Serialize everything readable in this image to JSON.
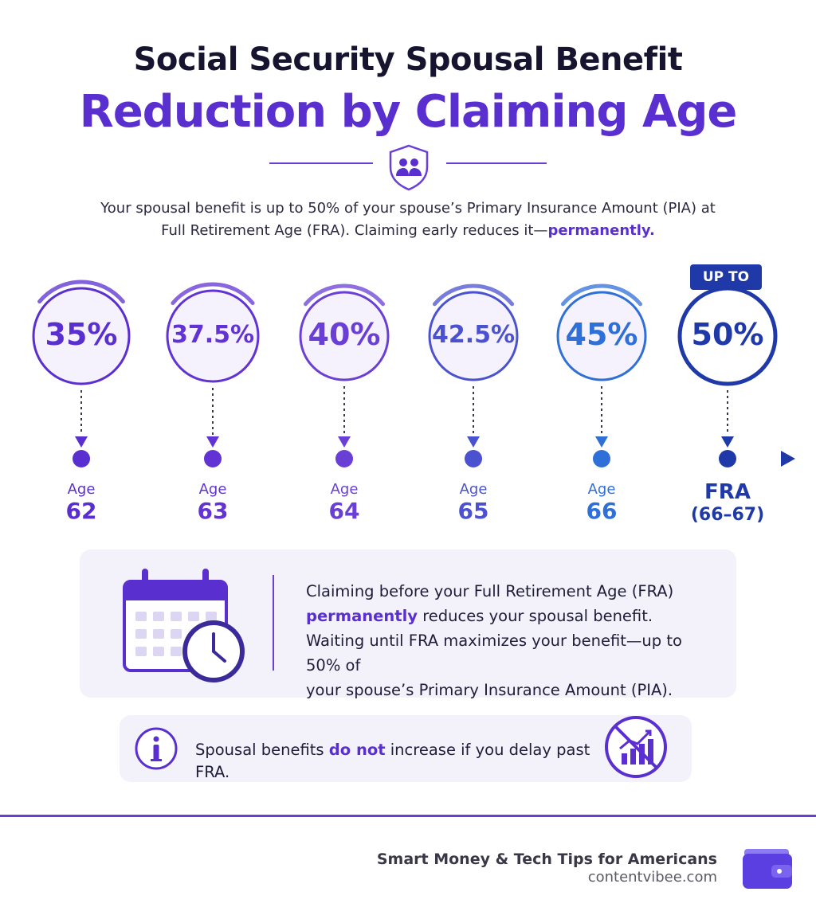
{
  "header": {
    "title_line1": "Social Security Spousal Benefit",
    "title_line2": "Reduction by Claiming Age",
    "icon": "shield-people-icon",
    "subtitle_part1": "Your spousal benefit is up to 50% of your spouse’s Primary Insurance Amount (PIA) at Full Retirement Age (FRA). Claiming early reduces it—",
    "subtitle_emph": "permanently."
  },
  "timeline": {
    "badge": "UP TO",
    "points": [
      {
        "pct": "35%",
        "age_label": "Age",
        "age": "62",
        "color": "#5a2fd0",
        "fill": 0.7
      },
      {
        "pct": "37.5%",
        "age_label": "Age",
        "age": "63",
        "color": "#6233d4",
        "fill": 0.75
      },
      {
        "pct": "40%",
        "age_label": "Age",
        "age": "64",
        "color": "#6a3fd6",
        "fill": 0.8
      },
      {
        "pct": "42.5%",
        "age_label": "Age",
        "age": "65",
        "color": "#4b52cf",
        "fill": 0.85
      },
      {
        "pct": "45%",
        "age_label": "Age",
        "age": "66",
        "color": "#2f6fd8",
        "fill": 0.9
      },
      {
        "pct": "50%",
        "age_label": "FRA",
        "age": "(66–67)",
        "color": "#1f3aa8",
        "fill": 1.0
      }
    ]
  },
  "info_card": {
    "icon": "calendar-clock-icon",
    "line1": "Claiming before your Full Retirement Age (FRA)",
    "line2_emph": "permanently",
    "line2_rest": " reduces your spousal benefit.",
    "line3": "Waiting until FRA maximizes your benefit—up to 50% of",
    "line4": "your spouse’s Primary Insurance Amount (PIA)."
  },
  "note_card": {
    "icon": "info-icon",
    "text_before": "Spousal benefits ",
    "text_emph": "do not",
    "text_after": " increase if you delay past FRA.",
    "right_icon": "no-growth-chart-icon"
  },
  "footer": {
    "brand": "Smart Money & Tech Tips for Americans",
    "url": "contentvibee.com",
    "icon": "wallet-icon"
  }
}
